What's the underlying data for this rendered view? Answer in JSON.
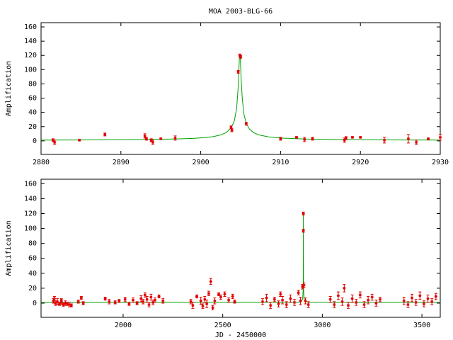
{
  "chart_data": [
    {
      "type": "scatter",
      "title": "MOA 2003-BLG-66",
      "ylabel": "Amplification",
      "xlim": [
        2880,
        2930
      ],
      "ylim": [
        -19,
        166
      ],
      "xticks": [
        2880,
        2890,
        2900,
        2910,
        2920,
        2930
      ],
      "yticks": [
        0,
        20,
        40,
        60,
        80,
        100,
        120,
        140,
        160
      ],
      "series": [
        {
          "mode": "line",
          "color": "#00a000",
          "x": [
            2880,
            2885,
            2890,
            2894,
            2897,
            2899,
            2900.5,
            2901.5,
            2902.5,
            2903.2,
            2903.8,
            2904.2,
            2904.5,
            2904.7,
            2904.85,
            2904.9,
            2904.95,
            2905.05,
            2905.2,
            2905.4,
            2905.7,
            2906.1,
            2906.6,
            2907.3,
            2908.5,
            2910,
            2913,
            2918,
            2925,
            2930
          ],
          "values": [
            1.2,
            1.3,
            1.6,
            2.0,
            2.7,
            3.5,
            4.6,
            5.9,
            8.3,
            11.8,
            18.2,
            27.8,
            46,
            77,
            119,
            120,
            119,
            89,
            60,
            38,
            24.7,
            16.5,
            11.8,
            8.3,
            5.6,
            4.0,
            2.6,
            1.8,
            1.3,
            1.2
          ]
        },
        {
          "mode": "errorbar",
          "color": "#e00000",
          "x": [
            2881.5,
            2881.7,
            2884.8,
            2888,
            2893,
            2893.2,
            2893.8,
            2894,
            2895,
            2896.8,
            2903.8,
            2903.9,
            2904.7,
            2904.9,
            2905.0,
            2905.7,
            2910,
            2912,
            2913,
            2914,
            2918,
            2918.2,
            2919,
            2920,
            2923,
            2926,
            2927,
            2928.5,
            2930
          ],
          "values": [
            1,
            -2,
            1,
            9,
            7,
            3,
            1,
            -2,
            3,
            4,
            19,
            15,
            97,
            120,
            118,
            24,
            3,
            5,
            2,
            3,
            1,
            4,
            5,
            5,
            1,
            3,
            -2,
            3,
            5
          ],
          "errors": [
            2,
            3,
            1,
            2,
            3,
            2,
            2,
            3,
            1,
            3,
            2,
            2,
            2,
            2,
            2,
            2,
            2,
            1,
            3,
            2,
            3,
            2,
            1,
            1,
            4,
            6,
            3,
            1,
            4
          ]
        }
      ]
    },
    {
      "type": "scatter",
      "xlabel": "JD - 2450000",
      "ylabel": "Amplification",
      "xlim": [
        1588,
        3592
      ],
      "ylim": [
        -19,
        166
      ],
      "xticks": [
        2000,
        2500,
        3000,
        3500
      ],
      "yticks": [
        0,
        20,
        40,
        60,
        80,
        100,
        120,
        140,
        160
      ],
      "series": [
        {
          "mode": "line",
          "color": "#00a000",
          "x": [
            1588,
            2880,
            2895,
            2901.5,
            2903.8,
            2904.5,
            2904.9,
            2905.4,
            2906.1,
            2908.5,
            2913,
            2930,
            3592
          ],
          "values": [
            1,
            1.2,
            2.2,
            5.9,
            18.2,
            46,
            120,
            38,
            16.5,
            5.6,
            2.6,
            1.2,
            1
          ]
        },
        {
          "mode": "errorbar",
          "color": "#e00000",
          "x": [
            1650,
            1655,
            1660,
            1670,
            1680,
            1690,
            1690,
            1700,
            1710,
            1720,
            1730,
            1740,
            1775,
            1790,
            1800,
            1910,
            1930,
            1960,
            1980,
            2010,
            2030,
            2050,
            2070,
            2090,
            2100,
            2110,
            2120,
            2130,
            2140,
            2150,
            2160,
            2180,
            2200,
            2340,
            2350,
            2370,
            2390,
            2400,
            2410,
            2420,
            2430,
            2440,
            2450,
            2460,
            2480,
            2490,
            2510,
            2530,
            2550,
            2560,
            2700,
            2720,
            2740,
            2760,
            2780,
            2790,
            2800,
            2820,
            2840,
            2860,
            2880,
            2890,
            2900,
            2904.7,
            2904.9,
            2908,
            2915,
            2930,
            3040,
            3060,
            3080,
            3100,
            3110,
            3130,
            3150,
            3170,
            3190,
            3210,
            3230,
            3250,
            3270,
            3290,
            3410,
            3430,
            3450,
            3470,
            3490,
            3510,
            3530,
            3550,
            3570
          ],
          "values": [
            3,
            6,
            0,
            2,
            -1,
            1,
            4,
            -2,
            0,
            -1,
            -2,
            -3,
            2,
            7,
            0,
            6,
            2,
            1,
            3,
            5,
            -1,
            4,
            0,
            6,
            2,
            11,
            5,
            -2,
            8,
            1,
            4,
            9,
            3,
            2,
            -3,
            9,
            3,
            -4,
            5,
            -1,
            13,
            29,
            -6,
            3,
            12,
            8,
            12,
            4,
            9,
            2,
            2,
            7,
            -3,
            5,
            -1,
            12,
            4,
            -2,
            6,
            1,
            14,
            3,
            22,
            97,
            120,
            24,
            3,
            -2,
            5,
            -2,
            10,
            2,
            20,
            -3,
            6,
            1,
            11,
            -2,
            4,
            8,
            0,
            5,
            3,
            -2,
            7,
            1,
            10,
            -1,
            6,
            2,
            9
          ],
          "errors": [
            3,
            3,
            3,
            4,
            2,
            3,
            2,
            2,
            3,
            2,
            3,
            2,
            2,
            2,
            2,
            2,
            3,
            2,
            2,
            3,
            2,
            3,
            2,
            4,
            3,
            3,
            4,
            3,
            4,
            3,
            3,
            2,
            3,
            3,
            4,
            2,
            5,
            3,
            4,
            5,
            3,
            4,
            3,
            4,
            2,
            3,
            3,
            3,
            3,
            2,
            4,
            5,
            4,
            3,
            4,
            3,
            5,
            4,
            5,
            4,
            3,
            5,
            3,
            2,
            2,
            3,
            4,
            4,
            4,
            4,
            5,
            5,
            5,
            4,
            5,
            4,
            4,
            4,
            5,
            4,
            4,
            3,
            5,
            4,
            5,
            4,
            5,
            4,
            5,
            4,
            4
          ]
        }
      ]
    }
  ]
}
